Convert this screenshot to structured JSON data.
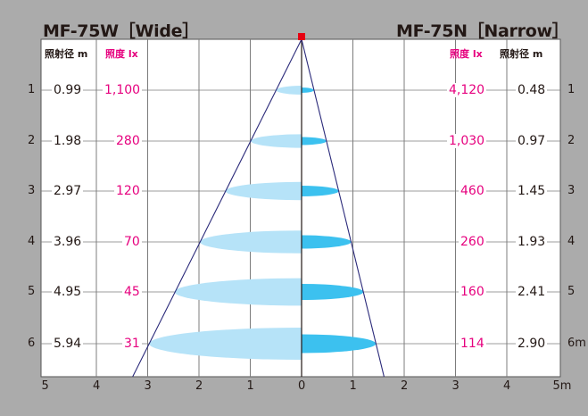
{
  "wide": {
    "title": "MF-75W［Wide］",
    "dist_header": "照射径 m",
    "lux_header": "照度 lx",
    "rows": [
      {
        "depth": "1",
        "diameter": "0.99",
        "lux": "1,100"
      },
      {
        "depth": "2",
        "diameter": "1.98",
        "lux": "280"
      },
      {
        "depth": "3",
        "diameter": "2.97",
        "lux": "120"
      },
      {
        "depth": "4",
        "diameter": "3.96",
        "lux": "70"
      },
      {
        "depth": "5",
        "diameter": "4.95",
        "lux": "45"
      },
      {
        "depth": "6",
        "diameter": "5.94",
        "lux": "31"
      }
    ]
  },
  "narrow": {
    "title": "MF-75N［Narrow］",
    "dist_header": "照射径 m",
    "lux_header": "照度 lx",
    "rows": [
      {
        "depth": "1",
        "diameter": "0.48",
        "lux": "4,120"
      },
      {
        "depth": "2",
        "diameter": "0.97",
        "lux": "1,030"
      },
      {
        "depth": "3",
        "diameter": "1.45",
        "lux": "460"
      },
      {
        "depth": "4",
        "diameter": "1.93",
        "lux": "260"
      },
      {
        "depth": "5",
        "diameter": "2.41",
        "lux": "160"
      },
      {
        "depth": "6m",
        "diameter": "2.90",
        "lux": "114"
      }
    ]
  },
  "x_axis": {
    "ticks": [
      "5",
      "4",
      "3",
      "2",
      "1",
      "0",
      "1",
      "2",
      "3",
      "4",
      "5m"
    ]
  },
  "colors": {
    "background": "#ababab",
    "panel": "#ffffff",
    "grid": "#7c7c7c",
    "beam_line": "#2b2a7a",
    "lux_text": "#e6007e",
    "wide_ellipse": "#b6e3f8",
    "narrow_ellipse": "#3cc1ef",
    "source_marker": "#e60012"
  }
}
